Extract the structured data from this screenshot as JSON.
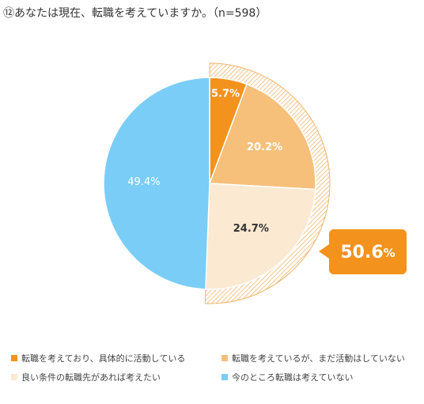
{
  "title": "⑫あなたは現在、転職を考えていますか。（n=598）",
  "chart_data": {
    "type": "pie",
    "series": [
      {
        "name": "転職を考えており、具体的に活動している",
        "value": 5.7,
        "label": "5.7%",
        "color": "#F3921D",
        "label_color": "#ffffff"
      },
      {
        "name": "転職を考えているが、まだ活動はしていない",
        "value": 20.2,
        "label": "20.2%",
        "color": "#F6C07B",
        "label_color": "#ffffff"
      },
      {
        "name": "良い条件の転職先があれば考えたい",
        "value": 24.7,
        "label": "24.7%",
        "color": "#FBE9D2",
        "label_color": "#333333"
      },
      {
        "name": "今のところ転職は考えていない",
        "value": 49.4,
        "label": "49.4%",
        "color": "#7ACDF6",
        "label_color": "#ffffff"
      }
    ],
    "callout": {
      "value": "50.6",
      "unit": "%",
      "color": "#F3921D"
    }
  },
  "colors": {
    "hatch": "#F0B46A",
    "callout": "#F3921D"
  }
}
